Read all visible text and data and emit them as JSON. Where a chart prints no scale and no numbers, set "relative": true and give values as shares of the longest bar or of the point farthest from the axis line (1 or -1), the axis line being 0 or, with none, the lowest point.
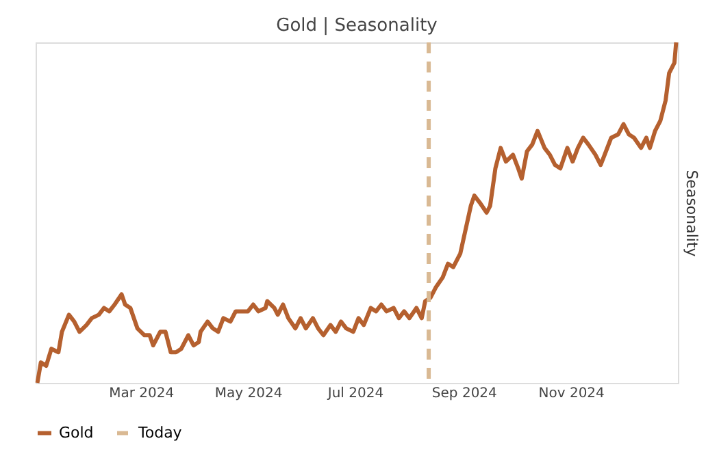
{
  "chart_data": {
    "type": "line",
    "title": "Gold | Seasonality",
    "ylabel": "Seasonality",
    "relative": true,
    "tick_labels": "x",
    "grid": false,
    "legend": "bottom",
    "line_style": "solid",
    "marker": "none",
    "xlim": [
      "2024-01-01",
      "2025-01-01"
    ],
    "xticks": [
      {
        "value": "2024-03-01",
        "label": "Mar 2024"
      },
      {
        "value": "2024-05-01",
        "label": "May 2024"
      },
      {
        "value": "2024-07-01",
        "label": "Jul 2024"
      },
      {
        "value": "2024-09-01",
        "label": "Sep 2024"
      },
      {
        "value": "2024-11-01",
        "label": "Nov 2024"
      }
    ],
    "ref_lines": [
      {
        "axis": "x",
        "value": "2024-08-12",
        "label": "Today",
        "color": "#d9b993",
        "line_style": "dashed"
      }
    ],
    "x": [
      "2024-01-02",
      "2024-01-04",
      "2024-01-07",
      "2024-01-10",
      "2024-01-14",
      "2024-01-16",
      "2024-01-20",
      "2024-01-23",
      "2024-01-26",
      "2024-01-30",
      "2024-02-02",
      "2024-02-06",
      "2024-02-09",
      "2024-02-12",
      "2024-02-15",
      "2024-02-19",
      "2024-02-21",
      "2024-02-24",
      "2024-02-28",
      "2024-03-03",
      "2024-03-06",
      "2024-03-08",
      "2024-03-12",
      "2024-03-15",
      "2024-03-18",
      "2024-03-21",
      "2024-03-24",
      "2024-03-28",
      "2024-03-31",
      "2024-04-03",
      "2024-04-04",
      "2024-04-08",
      "2024-04-11",
      "2024-04-14",
      "2024-04-17",
      "2024-04-21",
      "2024-04-24",
      "2024-04-27",
      "2024-05-01",
      "2024-05-04",
      "2024-05-07",
      "2024-05-11",
      "2024-05-12",
      "2024-05-16",
      "2024-05-18",
      "2024-05-21",
      "2024-05-24",
      "2024-05-28",
      "2024-05-31",
      "2024-06-03",
      "2024-06-07",
      "2024-06-10",
      "2024-06-13",
      "2024-06-17",
      "2024-06-20",
      "2024-06-23",
      "2024-06-26",
      "2024-06-30",
      "2024-07-03",
      "2024-07-06",
      "2024-07-10",
      "2024-07-13",
      "2024-07-16",
      "2024-07-19",
      "2024-07-23",
      "2024-07-26",
      "2024-07-29",
      "2024-08-01",
      "2024-08-05",
      "2024-08-08",
      "2024-08-10",
      "2024-08-13",
      "2024-08-16",
      "2024-08-20",
      "2024-08-23",
      "2024-08-26",
      "2024-08-30",
      "2024-09-02",
      "2024-09-05",
      "2024-09-07",
      "2024-09-10",
      "2024-09-14",
      "2024-09-16",
      "2024-09-19",
      "2024-09-22",
      "2024-09-25",
      "2024-09-29",
      "2024-10-02",
      "2024-10-04",
      "2024-10-07",
      "2024-10-10",
      "2024-10-13",
      "2024-10-17",
      "2024-10-20",
      "2024-10-23",
      "2024-10-26",
      "2024-10-30",
      "2024-11-02",
      "2024-11-05",
      "2024-11-08",
      "2024-11-11",
      "2024-11-15",
      "2024-11-18",
      "2024-11-21",
      "2024-11-24",
      "2024-11-28",
      "2024-12-01",
      "2024-12-04",
      "2024-12-07",
      "2024-12-11",
      "2024-12-14",
      "2024-12-16",
      "2024-12-19",
      "2024-12-22",
      "2024-12-25",
      "2024-12-27",
      "2024-12-30",
      "2024-12-31"
    ],
    "series": [
      {
        "name": "Gold",
        "color": "#b5602f",
        "values": [
          0.0,
          0.06,
          0.05,
          0.1,
          0.09,
          0.15,
          0.2,
          0.18,
          0.15,
          0.17,
          0.19,
          0.2,
          0.22,
          0.21,
          0.23,
          0.26,
          0.23,
          0.22,
          0.16,
          0.14,
          0.14,
          0.11,
          0.15,
          0.15,
          0.09,
          0.09,
          0.1,
          0.14,
          0.11,
          0.12,
          0.15,
          0.18,
          0.16,
          0.15,
          0.19,
          0.18,
          0.21,
          0.21,
          0.21,
          0.23,
          0.21,
          0.22,
          0.24,
          0.22,
          0.2,
          0.23,
          0.19,
          0.16,
          0.19,
          0.16,
          0.19,
          0.16,
          0.14,
          0.17,
          0.15,
          0.18,
          0.16,
          0.15,
          0.19,
          0.17,
          0.22,
          0.21,
          0.23,
          0.21,
          0.22,
          0.19,
          0.21,
          0.19,
          0.22,
          0.19,
          0.24,
          0.25,
          0.28,
          0.31,
          0.35,
          0.34,
          0.38,
          0.45,
          0.52,
          0.55,
          0.53,
          0.5,
          0.52,
          0.63,
          0.69,
          0.65,
          0.67,
          0.63,
          0.6,
          0.68,
          0.7,
          0.74,
          0.69,
          0.67,
          0.64,
          0.63,
          0.69,
          0.65,
          0.69,
          0.72,
          0.7,
          0.67,
          0.64,
          0.68,
          0.72,
          0.73,
          0.76,
          0.73,
          0.72,
          0.69,
          0.72,
          0.69,
          0.74,
          0.77,
          0.83,
          0.91,
          0.94,
          1.0
        ]
      }
    ]
  }
}
